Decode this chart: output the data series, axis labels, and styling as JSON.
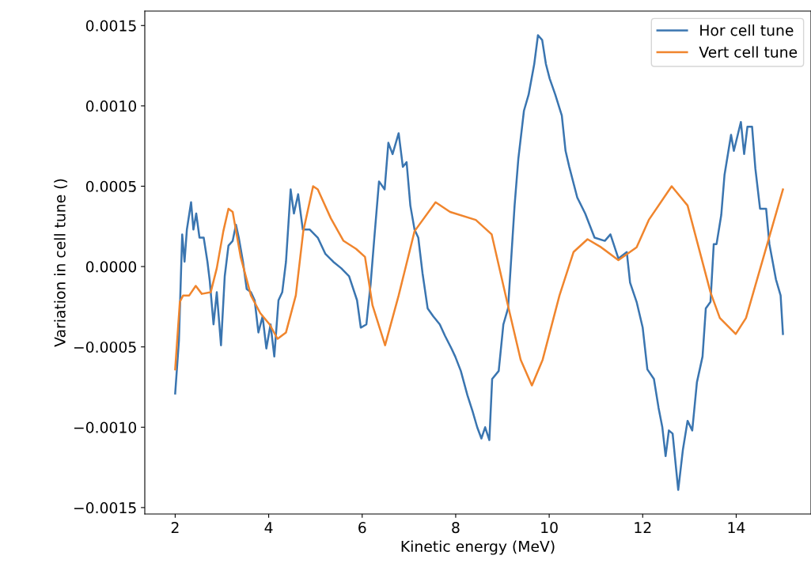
{
  "chart_data": {
    "type": "line",
    "xlabel": "Kinetic energy (MeV)",
    "ylabel": "Variation in cell tune ()",
    "xlim": [
      1.35,
      15.6
    ],
    "xticks": [
      2,
      4,
      6,
      8,
      10,
      12,
      14
    ],
    "ylim": [
      -0.00154,
      0.00159
    ],
    "yticks": [
      {
        "value": 0.0015,
        "label": "0.0015"
      },
      {
        "value": 0.001,
        "label": "0.0010"
      },
      {
        "value": 0.0005,
        "label": "0.0005"
      },
      {
        "value": 0,
        "label": "0.0000"
      },
      {
        "value": -0.0005,
        "label": "−0.0005"
      },
      {
        "value": -0.001,
        "label": "−0.0010"
      },
      {
        "value": -0.0015,
        "label": "−0.0015"
      }
    ],
    "grid": false,
    "legend": "top right",
    "marker": "none",
    "line_style": "solid",
    "series": [
      {
        "name": "Hor cell tune",
        "color": "#3a75b0",
        "x": [
          2.0,
          2.08,
          2.15,
          2.2,
          2.25,
          2.34,
          2.39,
          2.45,
          2.52,
          2.61,
          2.69,
          2.74,
          2.82,
          2.89,
          2.98,
          3.06,
          3.14,
          3.23,
          3.3,
          3.36,
          3.45,
          3.53,
          3.62,
          3.7,
          3.78,
          3.87,
          3.95,
          4.04,
          4.12,
          4.21,
          4.29,
          4.37,
          4.47,
          4.54,
          4.63,
          4.73,
          4.88,
          5.05,
          5.21,
          5.38,
          5.55,
          5.72,
          5.89,
          5.97,
          6.09,
          6.18,
          6.26,
          6.36,
          6.48,
          6.56,
          6.65,
          6.78,
          6.87,
          6.95,
          7.03,
          7.12,
          7.2,
          7.29,
          7.4,
          7.52,
          7.66,
          7.77,
          7.91,
          7.99,
          8.11,
          8.25,
          8.36,
          8.46,
          8.55,
          8.63,
          8.72,
          8.78,
          8.92,
          9.02,
          9.12,
          9.26,
          9.34,
          9.46,
          9.56,
          9.68,
          9.76,
          9.85,
          9.93,
          10.01,
          10.13,
          10.27,
          10.35,
          10.43,
          10.6,
          10.77,
          10.97,
          11.19,
          11.31,
          11.48,
          11.66,
          11.73,
          11.87,
          12.0,
          12.1,
          12.24,
          12.34,
          12.42,
          12.49,
          12.56,
          12.64,
          12.76,
          12.86,
          12.96,
          13.06,
          13.16,
          13.28,
          13.35,
          13.45,
          13.52,
          13.58,
          13.68,
          13.75,
          13.89,
          13.95,
          14.1,
          14.17,
          14.24,
          14.34,
          14.41,
          14.51,
          14.64,
          14.71,
          14.85,
          14.95,
          15.0
        ],
        "values": [
          -0.00079,
          -0.00046,
          0.0002,
          3e-05,
          0.00023,
          0.0004,
          0.00023,
          0.00033,
          0.00018,
          0.00018,
          3e-05,
          -9e-05,
          -0.00036,
          -0.00016,
          -0.00049,
          -6e-05,
          0.00013,
          0.00016,
          0.00026,
          0.00018,
          3e-05,
          -0.00014,
          -0.00016,
          -0.00021,
          -0.00041,
          -0.00031,
          -0.00051,
          -0.00036,
          -0.00056,
          -0.00021,
          -0.00016,
          3e-05,
          0.00048,
          0.00033,
          0.00045,
          0.00023,
          0.00023,
          0.00018,
          8e-05,
          3e-05,
          -1e-05,
          -6e-05,
          -0.00021,
          -0.00038,
          -0.00036,
          -0.00011,
          0.00018,
          0.00053,
          0.00048,
          0.00077,
          0.0007,
          0.00083,
          0.00062,
          0.00065,
          0.00038,
          0.00023,
          0.00018,
          -4e-05,
          -0.00026,
          -0.00031,
          -0.00036,
          -0.00043,
          -0.00051,
          -0.00056,
          -0.00065,
          -0.0008,
          -0.0009,
          -0.001,
          -0.00107,
          -0.001,
          -0.00108,
          -0.0007,
          -0.00065,
          -0.00036,
          -0.00026,
          0.00038,
          0.00067,
          0.00097,
          0.00107,
          0.00126,
          0.00144,
          0.00141,
          0.00126,
          0.00117,
          0.00107,
          0.00094,
          0.00072,
          0.00062,
          0.00043,
          0.00033,
          0.00018,
          0.00016,
          0.0002,
          5e-05,
          9e-05,
          -0.0001,
          -0.00022,
          -0.00038,
          -0.00064,
          -0.0007,
          -0.00088,
          -0.001,
          -0.00118,
          -0.00102,
          -0.00104,
          -0.00139,
          -0.00114,
          -0.00096,
          -0.00102,
          -0.00072,
          -0.00056,
          -0.00026,
          -0.00022,
          0.00014,
          0.00014,
          0.00032,
          0.00057,
          0.00082,
          0.00072,
          0.0009,
          0.0007,
          0.00087,
          0.00087,
          0.00061,
          0.00036,
          0.00036,
          0.00014,
          -8e-05,
          -0.00018,
          -0.00042
        ]
      },
      {
        "name": "Vert cell tune",
        "color": "#f0852d",
        "x": [
          2.0,
          2.1,
          2.17,
          2.3,
          2.44,
          2.57,
          2.76,
          2.89,
          3.03,
          3.14,
          3.23,
          3.4,
          3.62,
          3.82,
          4.02,
          4.19,
          4.37,
          4.58,
          4.74,
          4.95,
          5.05,
          5.33,
          5.6,
          5.87,
          6.06,
          6.22,
          6.49,
          6.78,
          7.12,
          7.57,
          7.88,
          8.43,
          8.77,
          9.1,
          9.39,
          9.63,
          9.86,
          10.22,
          10.52,
          10.82,
          11.11,
          11.48,
          11.87,
          12.13,
          12.62,
          12.96,
          13.45,
          13.65,
          13.99,
          14.21,
          15.0
        ],
        "values": [
          -0.00064,
          -0.00022,
          -0.00018,
          -0.00018,
          -0.00012,
          -0.00017,
          -0.00016,
          -1e-05,
          0.00022,
          0.00036,
          0.00034,
          6e-05,
          -0.00018,
          -0.00029,
          -0.00036,
          -0.00045,
          -0.00041,
          -0.00018,
          0.00022,
          0.0005,
          0.00048,
          0.0003,
          0.00016,
          0.00011,
          6e-05,
          -0.00024,
          -0.00049,
          -0.00018,
          0.00022,
          0.0004,
          0.00034,
          0.00029,
          0.0002,
          -0.00022,
          -0.00058,
          -0.00074,
          -0.00058,
          -0.00018,
          9e-05,
          0.00017,
          0.00012,
          4e-05,
          0.00012,
          0.00029,
          0.0005,
          0.00038,
          -0.00016,
          -0.00032,
          -0.00042,
          -0.00032,
          0.00048
        ]
      }
    ]
  }
}
